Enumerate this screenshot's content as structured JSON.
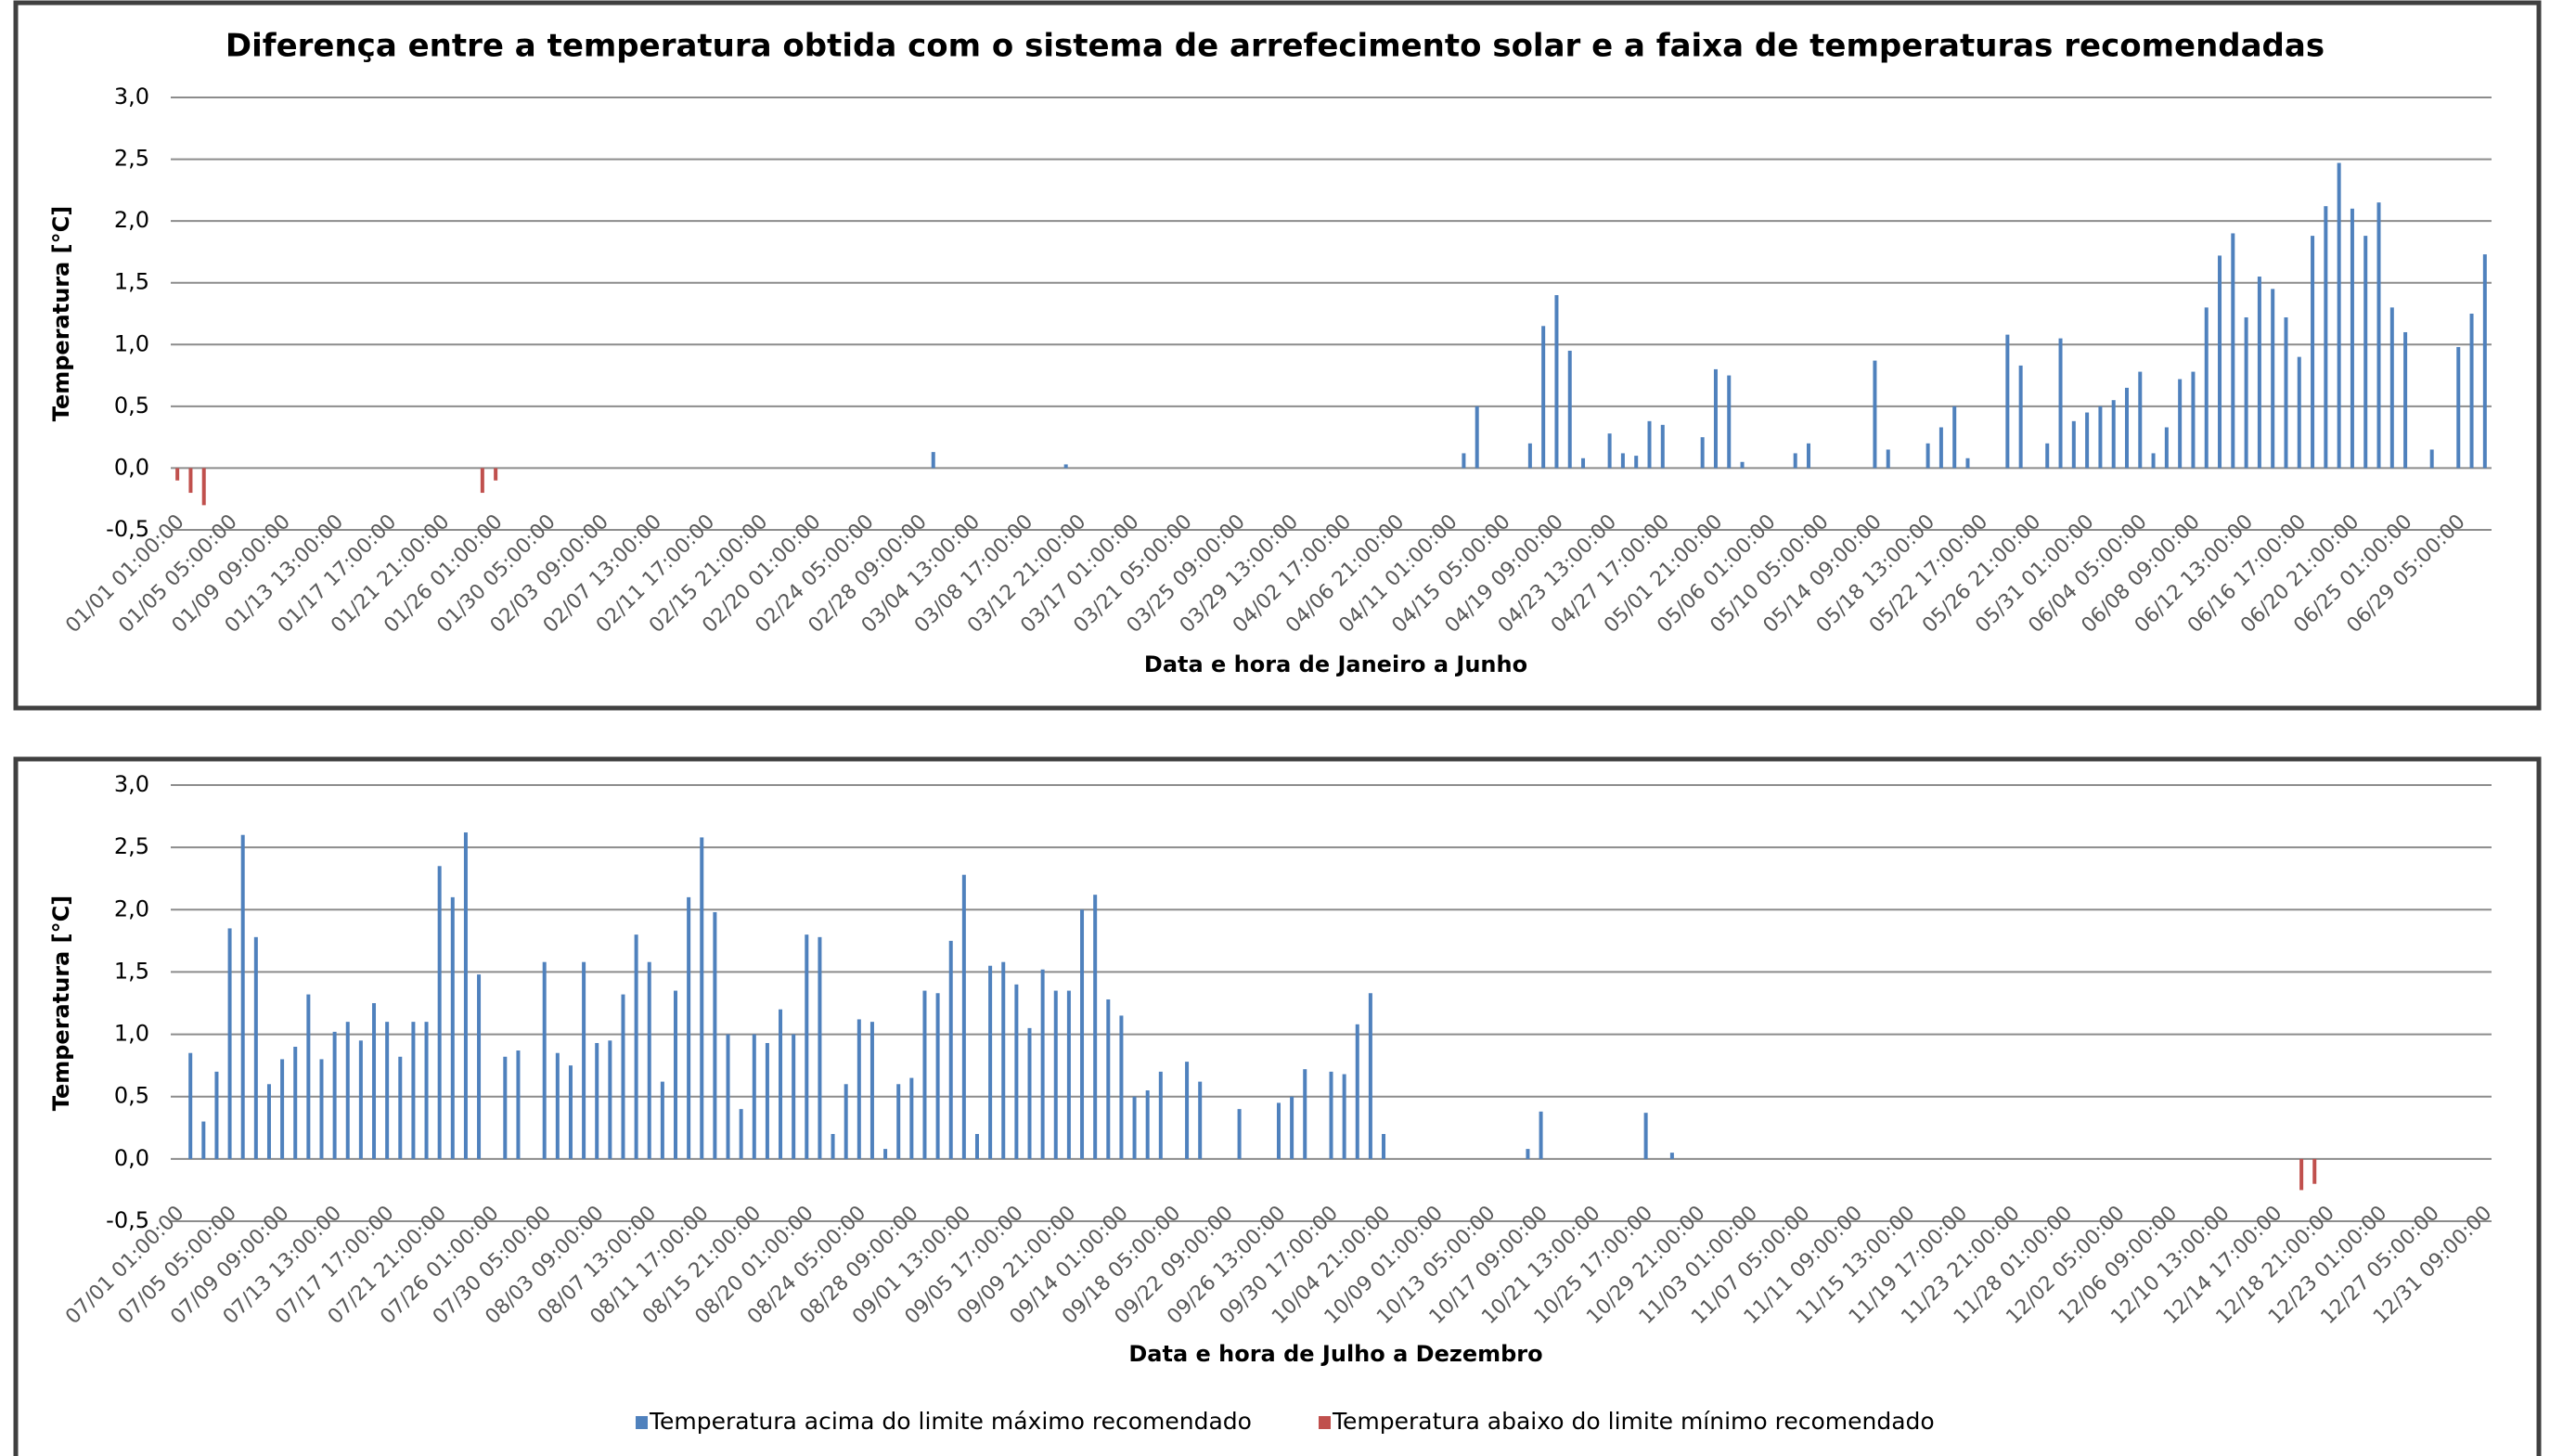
{
  "chart_data": [
    {
      "type": "bar",
      "title": "Diferença entre a temperatura obtida com o sistema de arrefecimento solar e a faixa de temperaturas recomendadas",
      "xlabel": "Data e hora de Janeiro a Junho",
      "ylabel": "Temperatura [°C]",
      "grid": true,
      "ylim": [
        -0.5,
        3
      ],
      "yticks": [
        {
          "value": -0.5,
          "label": "-0,5"
        },
        {
          "value": 0,
          "label": "0,0"
        },
        {
          "value": 0.5,
          "label": "0,5"
        },
        {
          "value": 1,
          "label": "1,0"
        },
        {
          "value": 1.5,
          "label": "1,5"
        },
        {
          "value": 2,
          "label": "2,0"
        },
        {
          "value": 2.5,
          "label": "2,5"
        },
        {
          "value": 3,
          "label": "3,0"
        }
      ],
      "categories": [
        "01/01 01:00:00",
        null,
        null,
        null,
        "01/05 05:00:00",
        null,
        null,
        null,
        "01/09 09:00:00",
        null,
        null,
        null,
        "01/13 13:00:00",
        null,
        null,
        null,
        "01/17 17:00:00",
        null,
        null,
        null,
        "01/21 21:00:00",
        null,
        null,
        null,
        "01/26 01:00:00",
        null,
        null,
        null,
        "01/30 05:00:00",
        null,
        null,
        null,
        "02/03 09:00:00",
        null,
        null,
        null,
        "02/07 13:00:00",
        null,
        null,
        null,
        "02/11 17:00:00",
        null,
        null,
        null,
        "02/15 21:00:00",
        null,
        null,
        null,
        "02/20 01:00:00",
        null,
        null,
        null,
        "02/24 05:00:00",
        null,
        null,
        null,
        "02/28 09:00:00",
        null,
        null,
        null,
        "03/04 13:00:00",
        null,
        null,
        null,
        "03/08 17:00:00",
        null,
        null,
        null,
        "03/12 21:00:00",
        null,
        null,
        null,
        "03/17 01:00:00",
        null,
        null,
        null,
        "03/21 05:00:00",
        null,
        null,
        null,
        "03/25 09:00:00",
        null,
        null,
        null,
        "03/29 13:00:00",
        null,
        null,
        null,
        "04/02 17:00:00",
        null,
        null,
        null,
        "04/06 21:00:00",
        null,
        null,
        null,
        "04/11 01:00:00",
        null,
        null,
        null,
        "04/15 05:00:00",
        null,
        null,
        null,
        "04/19 09:00:00",
        null,
        null,
        null,
        "04/23 13:00:00",
        null,
        null,
        null,
        "04/27 17:00:00",
        null,
        null,
        null,
        "05/01 21:00:00",
        null,
        null,
        null,
        "05/06 01:00:00",
        null,
        null,
        null,
        "05/10 05:00:00",
        null,
        null,
        null,
        "05/14 09:00:00",
        null,
        null,
        null,
        "05/18 13:00:00",
        null,
        null,
        null,
        "05/22 17:00:00",
        null,
        null,
        null,
        "05/26 21:00:00",
        null,
        null,
        null,
        "05/31 01:00:00",
        null,
        null,
        null,
        "06/04 05:00:00",
        null,
        null,
        null,
        "06/08 09:00:00",
        null,
        null,
        null,
        "06/12 13:00:00",
        null,
        null,
        null,
        "06/16 17:00:00",
        null,
        null,
        null,
        "06/20 21:00:00",
        null,
        null,
        null,
        "06/25 01:00:00",
        null,
        null,
        null,
        "06/29 05:00:00",
        null,
        null
      ],
      "series": [
        {
          "color": "#4f81bd",
          "values": [
            0,
            0,
            0,
            0,
            0,
            0,
            0,
            0,
            0,
            0,
            0,
            0,
            0,
            0,
            0,
            0,
            0,
            0,
            0,
            0,
            0,
            0,
            0,
            0,
            0,
            0,
            0,
            0,
            0,
            0,
            0,
            0,
            0,
            0,
            0,
            0,
            0,
            0,
            0,
            0,
            0,
            0,
            0,
            0,
            0,
            0,
            0,
            0,
            0,
            0,
            0,
            0,
            0,
            0,
            0,
            0,
            0,
            0.13,
            0,
            0,
            0,
            0,
            0,
            0,
            0,
            0,
            0,
            0.03,
            0,
            0,
            0,
            0,
            0,
            0,
            0,
            0,
            0,
            0,
            0,
            0,
            0,
            0,
            0,
            0,
            0,
            0,
            0,
            0,
            0,
            0,
            0,
            0,
            0,
            0,
            0,
            0,
            0,
            0.12,
            0.5,
            0,
            0,
            0,
            0.2,
            1.15,
            1.4,
            0.95,
            0.08,
            0,
            0.28,
            0.12,
            0.1,
            0.38,
            0.35,
            0,
            0,
            0.25,
            0.8,
            0.75,
            0.05,
            0,
            0,
            0,
            0.12,
            0.2,
            0,
            0,
            0,
            0,
            0.87,
            0.15,
            0,
            0,
            0.2,
            0.33,
            0.5,
            0.08,
            0,
            0,
            1.08,
            0.83,
            0,
            0.2,
            1.05,
            0.38,
            0.45,
            0.5,
            0.55,
            0.65,
            0.78,
            0.12,
            0.33,
            0.72,
            0.78,
            1.3,
            1.72,
            1.9,
            1.22,
            1.55,
            1.45,
            1.22,
            0.9,
            1.88,
            2.12,
            2.47,
            2.1,
            1.88,
            2.15,
            1.3,
            1.1,
            0,
            0.15,
            0,
            0.98,
            1.25,
            1.73
          ]
        },
        {
          "color": "#c0504d",
          "values": [
            -0.1,
            -0.2,
            -0.3,
            0,
            0,
            0,
            0,
            0,
            0,
            0,
            0,
            0,
            0,
            0,
            0,
            0,
            0,
            0,
            0,
            0,
            0,
            0,
            0,
            -0.2,
            -0.1,
            0,
            0,
            0,
            0,
            0,
            0,
            0,
            0,
            0,
            0,
            0,
            0,
            0,
            0,
            0,
            0,
            0,
            0,
            0,
            0,
            0,
            0,
            0,
            0,
            0,
            0,
            0,
            0,
            0,
            0,
            0,
            0,
            0,
            0,
            0,
            0,
            0,
            0,
            0,
            0,
            0,
            0,
            0,
            0,
            0,
            0,
            0,
            0,
            0,
            0,
            0,
            0,
            0,
            0,
            0,
            0,
            0,
            0,
            0,
            0,
            0,
            0,
            0,
            0,
            0,
            0,
            0,
            0,
            0,
            0,
            0,
            0,
            0,
            0,
            0,
            0,
            0,
            0,
            0,
            0,
            0,
            0,
            0,
            0,
            0,
            0,
            0,
            0,
            0,
            0,
            0,
            0,
            0,
            0,
            0,
            0,
            0,
            0,
            0,
            0,
            0,
            0,
            0,
            0,
            0,
            0,
            0,
            0,
            0,
            0,
            0,
            0,
            0,
            0,
            0,
            0,
            0,
            0,
            0,
            0,
            0,
            0,
            0,
            0,
            0,
            0,
            0,
            0,
            0,
            0,
            0,
            0,
            0,
            0,
            0,
            0,
            0,
            0,
            0,
            0,
            0,
            0,
            0,
            0,
            0,
            0,
            0,
            0,
            0,
            0
          ]
        }
      ]
    },
    {
      "type": "bar",
      "xlabel": "Data e hora de Julho a Dezembro",
      "ylabel": "Temperatura [°C]",
      "grid": true,
      "legend": "bottom",
      "ylim": [
        -0.5,
        3
      ],
      "yticks": [
        {
          "value": -0.5,
          "label": "-0,5"
        },
        {
          "value": 0,
          "label": "0,0"
        },
        {
          "value": 0.5,
          "label": "0,5"
        },
        {
          "value": 1,
          "label": "1,0"
        },
        {
          "value": 1.5,
          "label": "1,5"
        },
        {
          "value": 2,
          "label": "2,0"
        },
        {
          "value": 2.5,
          "label": "2,5"
        },
        {
          "value": 3,
          "label": "3,0"
        }
      ],
      "categories": [
        "07/01 01:00:00",
        null,
        null,
        null,
        "07/05 05:00:00",
        null,
        null,
        null,
        "07/09 09:00:00",
        null,
        null,
        null,
        "07/13 13:00:00",
        null,
        null,
        null,
        "07/17 17:00:00",
        null,
        null,
        null,
        "07/21 21:00:00",
        null,
        null,
        null,
        "07/26 01:00:00",
        null,
        null,
        null,
        "07/30 05:00:00",
        null,
        null,
        null,
        "08/03 09:00:00",
        null,
        null,
        null,
        "08/07 13:00:00",
        null,
        null,
        null,
        "08/11 17:00:00",
        null,
        null,
        null,
        "08/15 21:00:00",
        null,
        null,
        null,
        "08/20 01:00:00",
        null,
        null,
        null,
        "08/24 05:00:00",
        null,
        null,
        null,
        "08/28 09:00:00",
        null,
        null,
        null,
        "09/01 13:00:00",
        null,
        null,
        null,
        "09/05 17:00:00",
        null,
        null,
        null,
        "09/09 21:00:00",
        null,
        null,
        null,
        "09/14 01:00:00",
        null,
        null,
        null,
        "09/18 05:00:00",
        null,
        null,
        null,
        "09/22 09:00:00",
        null,
        null,
        null,
        "09/26 13:00:00",
        null,
        null,
        null,
        "09/30 17:00:00",
        null,
        null,
        null,
        "10/04 21:00:00",
        null,
        null,
        null,
        "10/09 01:00:00",
        null,
        null,
        null,
        "10/13 05:00:00",
        null,
        null,
        null,
        "10/17 09:00:00",
        null,
        null,
        null,
        "10/21 13:00:00",
        null,
        null,
        null,
        "10/25 17:00:00",
        null,
        null,
        null,
        "10/29 21:00:00",
        null,
        null,
        null,
        "11/03 01:00:00",
        null,
        null,
        null,
        "11/07 05:00:00",
        null,
        null,
        null,
        "11/11 09:00:00",
        null,
        null,
        null,
        "11/15 13:00:00",
        null,
        null,
        null,
        "11/19 17:00:00",
        null,
        null,
        null,
        "11/23 21:00:00",
        null,
        null,
        null,
        "11/28 01:00:00",
        null,
        null,
        null,
        "12/02 05:00:00",
        null,
        null,
        null,
        "12/06 09:00:00",
        null,
        null,
        null,
        "12/10 13:00:00",
        null,
        null,
        null,
        "12/14 17:00:00",
        null,
        null,
        null,
        "12/18 21:00:00",
        null,
        null,
        null,
        "12/23 01:00:00",
        null,
        null,
        null,
        "12/27 05:00:00",
        null,
        null,
        null,
        "12/31 09:00:00"
      ],
      "series": [
        {
          "name": "Temperatura acima do limite máximo recomendado",
          "color": "#4f81bd",
          "values": [
            0,
            0.85,
            0.3,
            0.7,
            1.85,
            2.6,
            1.78,
            0.6,
            0.8,
            0.9,
            1.32,
            0.8,
            1.02,
            1.1,
            0.95,
            1.25,
            1.1,
            0.82,
            1.1,
            1.1,
            2.35,
            2.1,
            2.62,
            1.48,
            0,
            0.82,
            0.87,
            0,
            1.58,
            0.85,
            0.75,
            1.58,
            0.93,
            0.95,
            1.32,
            1.8,
            1.58,
            0.62,
            1.35,
            2.1,
            2.58,
            1.98,
            1,
            0.4,
            1,
            0.93,
            1.2,
            1,
            1.8,
            1.78,
            0.2,
            0.6,
            1.12,
            1.1,
            0.08,
            0.6,
            0.65,
            1.35,
            1.33,
            1.75,
            2.28,
            0.2,
            1.55,
            1.58,
            1.4,
            1.05,
            1.52,
            1.35,
            1.35,
            2,
            2.12,
            1.28,
            1.15,
            0.5,
            0.55,
            0.7,
            0,
            0.78,
            0.62,
            0,
            0,
            0.4,
            0,
            0,
            0.45,
            0.5,
            0.72,
            0,
            0.7,
            0.68,
            1.08,
            1.33,
            0.2,
            0,
            0,
            0,
            0,
            0,
            0,
            0,
            0,
            0,
            0,
            0.08,
            0.38,
            0,
            0,
            0,
            0,
            0,
            0,
            0,
            0.37,
            0,
            0.05,
            0,
            0,
            0,
            0,
            0,
            0,
            0,
            0,
            0,
            0,
            0,
            0,
            0,
            0,
            0,
            0,
            0,
            0,
            0,
            0,
            0,
            0,
            0,
            0,
            0,
            0,
            0,
            0,
            0,
            0,
            0,
            0,
            0,
            0,
            0,
            0,
            0,
            0,
            0,
            0,
            0,
            0,
            0,
            0,
            0,
            0,
            0,
            0,
            0,
            0,
            0,
            0,
            0,
            0,
            0,
            0,
            0,
            0,
            0,
            0,
            0,
            0
          ]
        },
        {
          "name": "Temperatura abaixo do limite mínimo recomendado",
          "color": "#c0504d",
          "values": [
            0,
            0,
            0,
            0,
            0,
            0,
            0,
            0,
            0,
            0,
            0,
            0,
            0,
            0,
            0,
            0,
            0,
            0,
            0,
            0,
            0,
            0,
            0,
            0,
            0,
            0,
            0,
            0,
            0,
            0,
            0,
            0,
            0,
            0,
            0,
            0,
            0,
            0,
            0,
            0,
            0,
            0,
            0,
            0,
            0,
            0,
            0,
            0,
            0,
            0,
            0,
            0,
            0,
            0,
            0,
            0,
            0,
            0,
            0,
            0,
            0,
            0,
            0,
            0,
            0,
            0,
            0,
            0,
            0,
            0,
            0,
            0,
            0,
            0,
            0,
            0,
            0,
            0,
            0,
            0,
            0,
            0,
            0,
            0,
            0,
            0,
            0,
            0,
            0,
            0,
            0,
            0,
            0,
            0,
            0,
            0,
            0,
            0,
            0,
            0,
            0,
            0,
            0,
            0,
            0,
            0,
            0,
            0,
            0,
            0,
            0,
            0,
            0,
            0,
            0,
            0,
            0,
            0,
            0,
            0,
            0,
            0,
            0,
            0,
            0,
            0,
            0,
            0,
            0,
            0,
            0,
            0,
            0,
            0,
            0,
            0,
            0,
            0,
            0,
            0,
            0,
            0,
            0,
            0,
            0,
            0,
            0,
            0,
            0,
            0,
            0,
            0,
            0,
            0,
            0,
            0,
            0,
            0,
            0,
            0,
            0,
            0,
            -0.25,
            -0.2,
            0,
            0,
            0,
            0,
            0,
            0,
            0,
            0,
            0,
            0,
            0,
            0,
            0
          ]
        }
      ]
    }
  ]
}
